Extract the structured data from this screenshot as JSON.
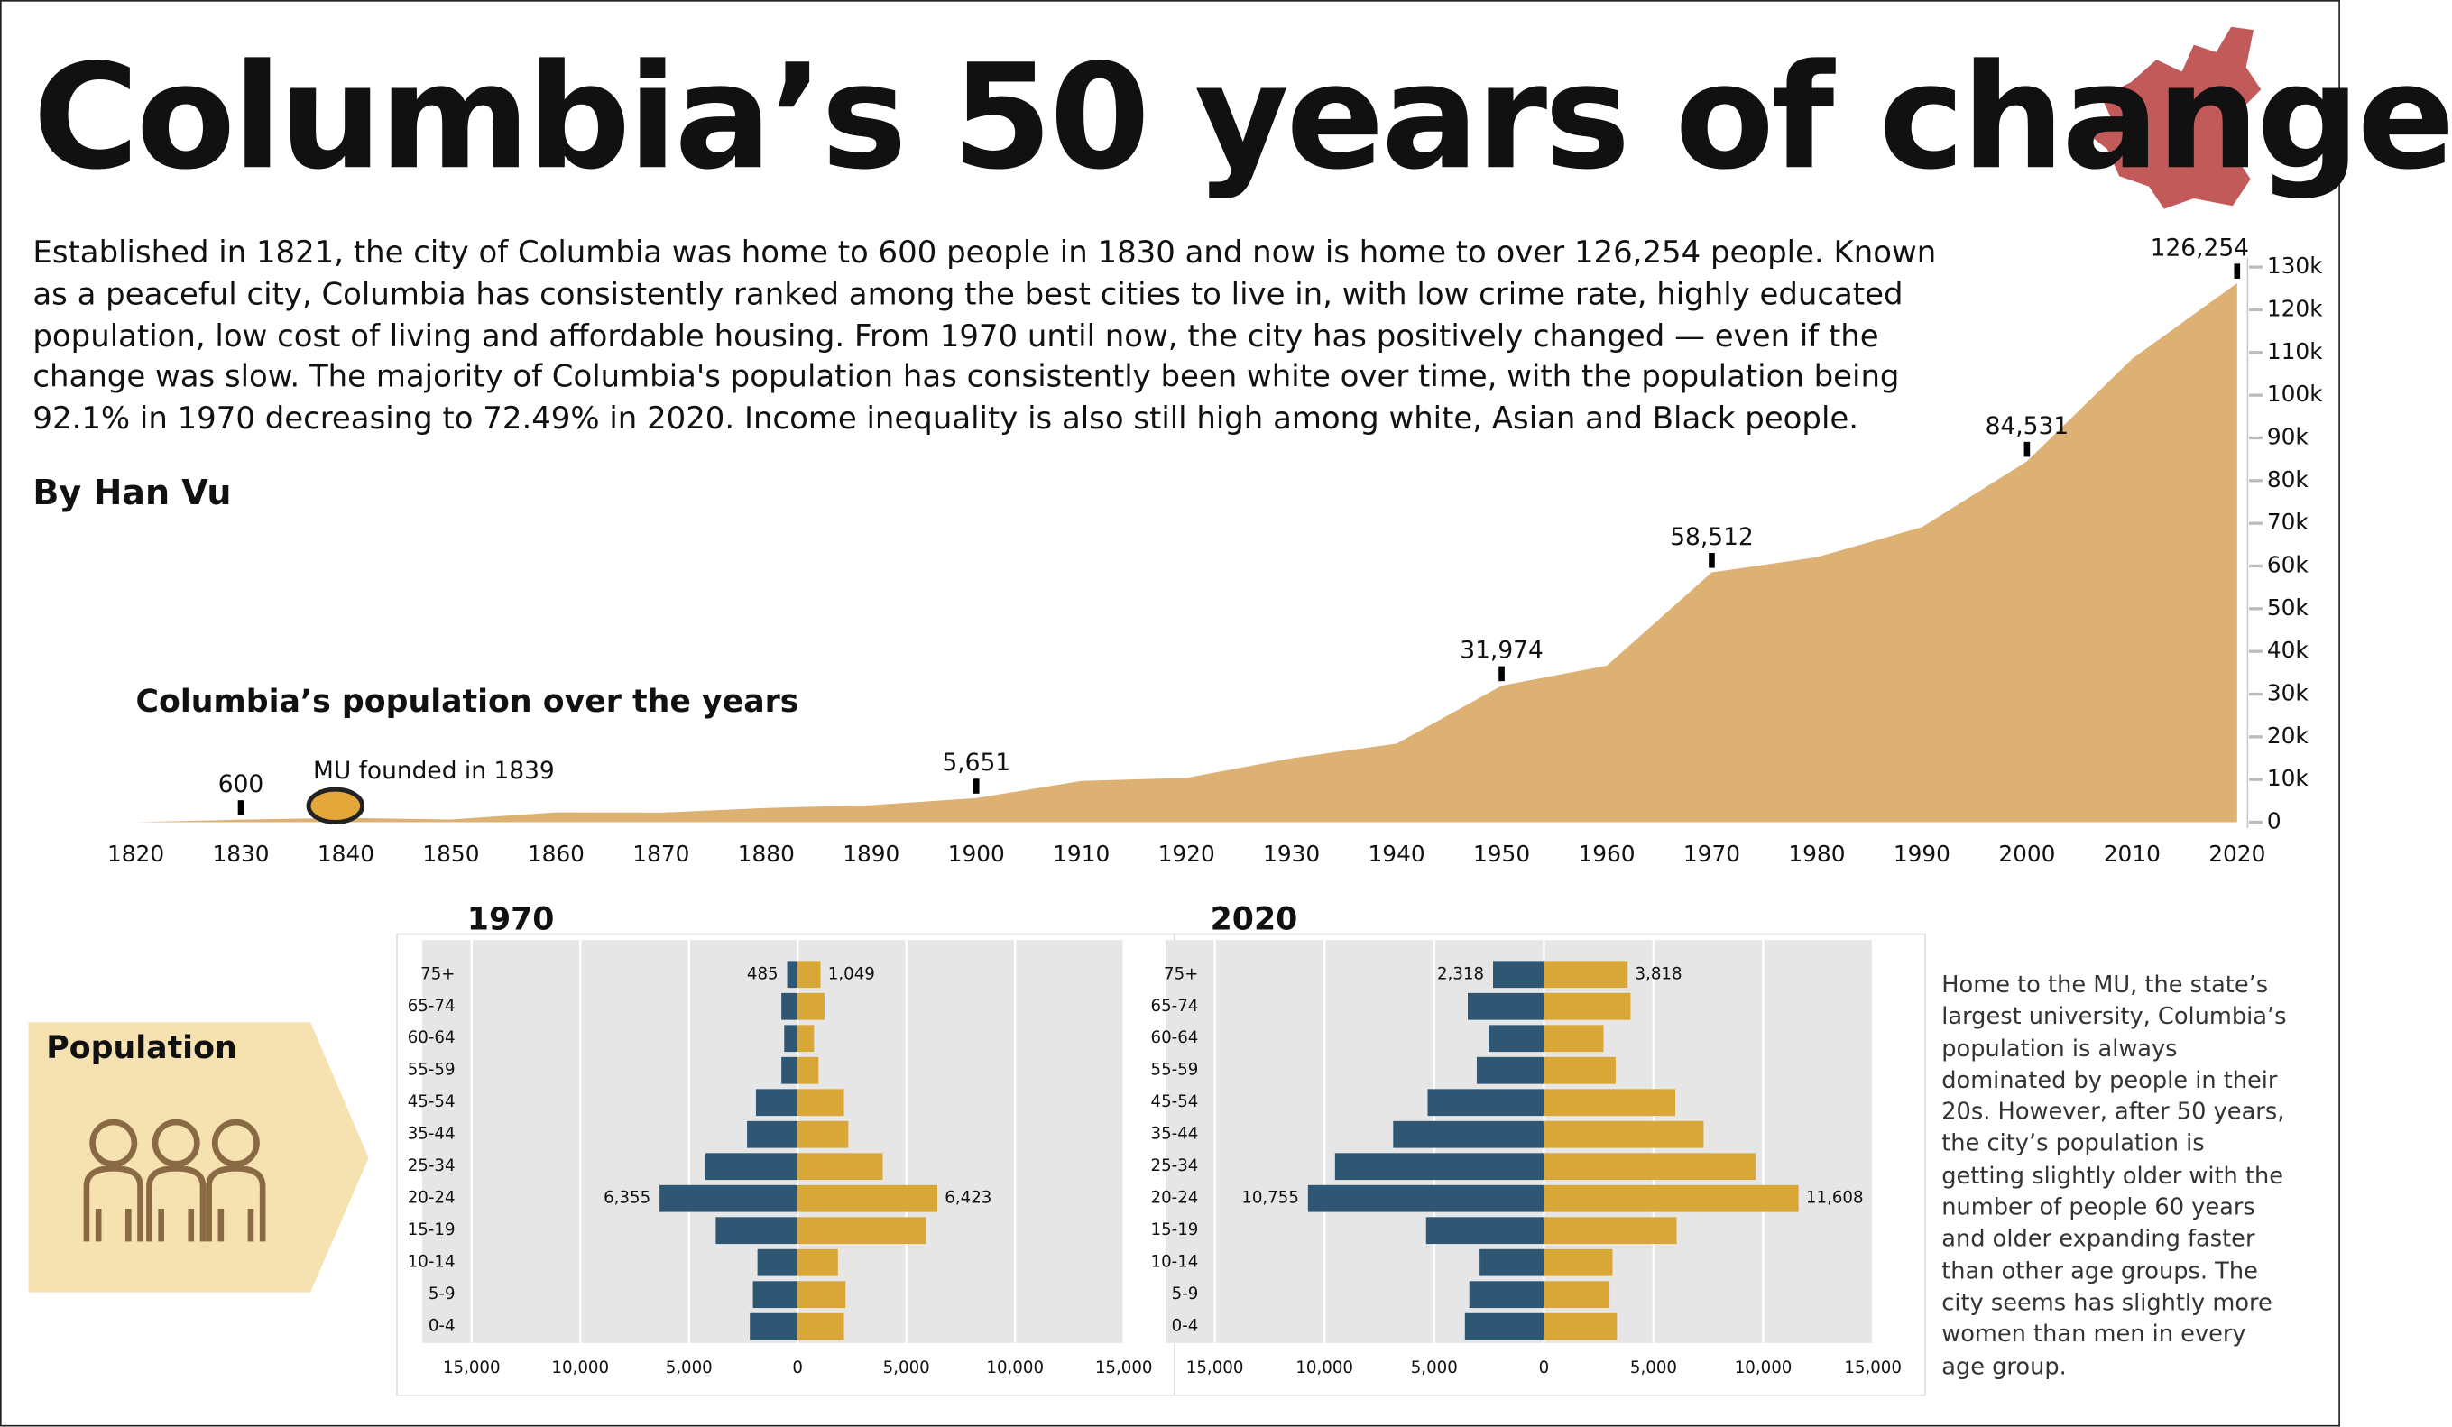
{
  "header": {
    "title": "Columbia’s 50 years of change",
    "intro": "Established in 1821, the city of Columbia was home to 600 people in 1830 and now is home to over 126,254 people. Known as a peaceful city, Columbia has consistently ranked among the best cities to live in, with low crime rate, highly educated population, low cost of living and affordable housing. From 1970 until now, the city has positively changed — even if the change was slow. The majority of Columbia's population has consistently been white over time, with the population being 92.1% in 1970 decreasing to 72.49% in 2020. Income inequality is also still high among white, Asian and Black people.",
    "byline": "By Han Vu"
  },
  "sidebar": {
    "label": "Population",
    "note": "Home to the MU, the state’s largest university, Columbia’s population is always dominated by people in their 20s. However, after 50 years, the city’s population is getting slightly older with the number of people 60 years and older expanding faster than other age groups. The city seems has slightly more women than men in every age group."
  },
  "chart_data": [
    {
      "type": "area",
      "title": "Columbia’s population over the years",
      "color": "#ddb073",
      "x": [
        1820,
        1830,
        1840,
        1850,
        1860,
        1870,
        1880,
        1890,
        1900,
        1910,
        1920,
        1930,
        1940,
        1950,
        1960,
        1970,
        1980,
        1990,
        2000,
        2010,
        2020
      ],
      "values": [
        0,
        600,
        1000,
        651,
        2300,
        2236,
        3326,
        4000,
        5651,
        9662,
        10392,
        14967,
        18399,
        31974,
        36650,
        58512,
        62061,
        69101,
        84531,
        108500,
        126254
      ],
      "value_labels": [
        null,
        "600",
        null,
        null,
        null,
        null,
        null,
        null,
        "5,651",
        null,
        null,
        null,
        null,
        "31,974",
        null,
        "58,512",
        null,
        null,
        "84,531",
        null,
        "126,254"
      ],
      "xlim": [
        1820,
        2020
      ],
      "xticks": [
        1820,
        1830,
        1840,
        1850,
        1860,
        1870,
        1880,
        1890,
        1900,
        1910,
        1920,
        1930,
        1940,
        1950,
        1960,
        1970,
        1980,
        1990,
        2000,
        2010,
        2020
      ],
      "ylim": [
        0,
        130000
      ],
      "yticks": [
        0,
        {
          "value": 10000,
          "label": "10k"
        },
        {
          "value": 20000,
          "label": "20k"
        },
        {
          "value": 30000,
          "label": "30k"
        },
        {
          "value": 40000,
          "label": "40k"
        },
        {
          "value": 50000,
          "label": "50k"
        },
        {
          "value": 60000,
          "label": "60k"
        },
        {
          "value": 70000,
          "label": "70k"
        },
        {
          "value": 80000,
          "label": "80k"
        },
        {
          "value": 90000,
          "label": "90k"
        },
        {
          "value": 100000,
          "label": "100k"
        },
        {
          "value": 110000,
          "label": "110k"
        },
        {
          "value": 120000,
          "label": "120k"
        },
        {
          "value": 130000,
          "label": "130k"
        }
      ],
      "annotations": [
        {
          "text": "MU founded in 1839",
          "x": 1839
        }
      ]
    },
    {
      "type": "pyramid",
      "title": "1970",
      "categories": [
        "75+",
        "65-74",
        "60-64",
        "55-59",
        "45-54",
        "35-44",
        "25-34",
        "20-24",
        "15-19",
        "10-14",
        "5-9",
        "0-4"
      ],
      "series": [
        {
          "color": "#2f5773",
          "values": [
            485,
            750,
            620,
            750,
            1920,
            2330,
            4250,
            6355,
            3770,
            1850,
            2060,
            2200
          ],
          "value_labels": [
            "485",
            null,
            null,
            null,
            null,
            null,
            null,
            "6,355",
            null,
            null,
            null,
            null
          ]
        },
        {
          "color": "#d9a638",
          "values": [
            1049,
            1240,
            750,
            960,
            2130,
            2330,
            3910,
            6423,
            5900,
            1850,
            2200,
            2130
          ],
          "value_labels": [
            "1,049",
            null,
            null,
            null,
            null,
            null,
            null,
            "6,423",
            null,
            null,
            null,
            null
          ]
        }
      ],
      "xlim": [
        -15000,
        15000
      ],
      "xticks": [
        {
          "value": -15000,
          "label": "15,000"
        },
        {
          "value": -10000,
          "label": "10,000"
        },
        {
          "value": -5000,
          "label": "5,000"
        },
        0,
        {
          "value": 5000,
          "label": "5,000"
        },
        {
          "value": 10000,
          "label": "10,000"
        },
        {
          "value": 15000,
          "label": "15,000"
        }
      ],
      "grid": true
    },
    {
      "type": "pyramid",
      "title": "2020",
      "categories": [
        "75+",
        "65-74",
        "60-64",
        "55-59",
        "45-54",
        "35-44",
        "25-34",
        "20-24",
        "15-19",
        "10-14",
        "5-9",
        "0-4"
      ],
      "series": [
        {
          "color": "#2f5773",
          "values": [
            2318,
            3470,
            2520,
            3060,
            5300,
            6870,
            9520,
            10755,
            5370,
            2930,
            3400,
            3600
          ],
          "value_labels": [
            "2,318",
            null,
            null,
            null,
            null,
            null,
            null,
            "10,755",
            null,
            null,
            null,
            null
          ]
        },
        {
          "color": "#d9a638",
          "values": [
            3818,
            3950,
            2720,
            3270,
            5990,
            7280,
            9660,
            11608,
            6050,
            3130,
            2990,
            3330
          ],
          "value_labels": [
            "3,818",
            null,
            null,
            null,
            null,
            null,
            null,
            "11,608",
            null,
            null,
            null,
            null
          ]
        }
      ],
      "xlim": [
        -15000,
        15000
      ],
      "xticks": [
        {
          "value": -15000,
          "label": "15,000"
        },
        {
          "value": -10000,
          "label": "10,000"
        },
        {
          "value": -5000,
          "label": "5,000"
        },
        0,
        {
          "value": 5000,
          "label": "5,000"
        },
        {
          "value": 10000,
          "label": "10,000"
        },
        {
          "value": 15000,
          "label": "15,000"
        }
      ],
      "grid": true
    }
  ]
}
